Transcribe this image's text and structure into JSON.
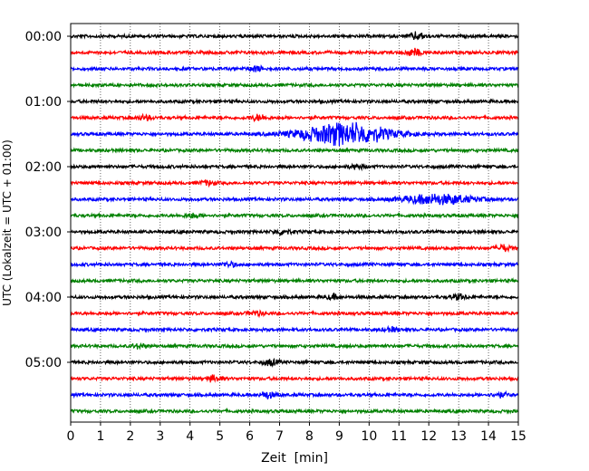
{
  "chart_data": {
    "type": "line",
    "title": "",
    "xlabel": "Zeit  [min]",
    "ylabel": "UTC (Lokalzeit = UTC + 01:00)",
    "xlim": [
      0,
      15
    ],
    "x_ticks": [
      0,
      1,
      2,
      3,
      4,
      5,
      6,
      7,
      8,
      9,
      10,
      11,
      12,
      13,
      14,
      15
    ],
    "x_tick_labels": [
      "0",
      "1",
      "2",
      "3",
      "4",
      "5",
      "6",
      "7",
      "8",
      "9",
      "10",
      "11",
      "12",
      "13",
      "14",
      "15"
    ],
    "y_tick_labels": [
      "00:00",
      "01:00",
      "02:00",
      "03:00",
      "04:00",
      "05:00"
    ],
    "y_tick_trace_index": [
      0,
      4,
      8,
      12,
      16,
      20
    ],
    "grid": "vertical dotted at each minute",
    "trace_minutes": 15,
    "trace_colors": [
      "#000000",
      "#ff0000",
      "#0000ff",
      "#008000"
    ],
    "traces": [
      {
        "start": "00:00",
        "color": "#000000",
        "bursts": [
          {
            "t": 11.6,
            "amp": 0.5
          }
        ]
      },
      {
        "start": "00:15",
        "color": "#ff0000",
        "bursts": [
          {
            "t": 11.5,
            "amp": 0.5
          }
        ]
      },
      {
        "start": "00:30",
        "color": "#0000ff",
        "bursts": [
          {
            "t": 6.2,
            "amp": 0.4
          }
        ]
      },
      {
        "start": "00:45",
        "color": "#008000",
        "bursts": []
      },
      {
        "start": "01:00",
        "color": "#000000",
        "bursts": []
      },
      {
        "start": "01:15",
        "color": "#ff0000",
        "bursts": [
          {
            "t": 2.5,
            "amp": 0.3
          },
          {
            "t": 6.3,
            "amp": 0.4
          }
        ]
      },
      {
        "start": "01:30",
        "color": "#0000ff",
        "bursts": [
          {
            "t": 9.2,
            "amp": 1.6,
            "width": 1.5
          }
        ]
      },
      {
        "start": "01:45",
        "color": "#008000",
        "bursts": []
      },
      {
        "start": "02:00",
        "color": "#000000",
        "bursts": [
          {
            "t": 9.6,
            "amp": 0.3
          }
        ]
      },
      {
        "start": "02:15",
        "color": "#ff0000",
        "bursts": [
          {
            "t": 4.6,
            "amp": 0.3
          }
        ]
      },
      {
        "start": "02:30",
        "color": "#0000ff",
        "bursts": [
          {
            "t": 12.3,
            "amp": 0.7,
            "width": 1.2
          }
        ]
      },
      {
        "start": "02:45",
        "color": "#008000",
        "bursts": [
          {
            "t": 4.1,
            "amp": 0.3
          }
        ]
      },
      {
        "start": "03:00",
        "color": "#000000",
        "bursts": [
          {
            "t": 7.1,
            "amp": 0.4
          }
        ]
      },
      {
        "start": "03:15",
        "color": "#ff0000",
        "bursts": [
          {
            "t": 14.5,
            "amp": 0.4
          }
        ]
      },
      {
        "start": "03:30",
        "color": "#0000ff",
        "bursts": [
          {
            "t": 5.3,
            "amp": 0.3
          }
        ]
      },
      {
        "start": "03:45",
        "color": "#008000",
        "bursts": []
      },
      {
        "start": "04:00",
        "color": "#000000",
        "bursts": [
          {
            "t": 13.0,
            "amp": 0.4
          },
          {
            "t": 8.8,
            "amp": 0.3
          }
        ]
      },
      {
        "start": "04:15",
        "color": "#ff0000",
        "bursts": [
          {
            "t": 6.2,
            "amp": 0.3
          }
        ]
      },
      {
        "start": "04:30",
        "color": "#0000ff",
        "bursts": [
          {
            "t": 10.8,
            "amp": 0.3
          }
        ]
      },
      {
        "start": "04:45",
        "color": "#008000",
        "bursts": [
          {
            "t": 2.3,
            "amp": 0.3
          }
        ]
      },
      {
        "start": "05:00",
        "color": "#000000",
        "bursts": [
          {
            "t": 6.7,
            "amp": 0.4
          }
        ]
      },
      {
        "start": "05:15",
        "color": "#ff0000",
        "bursts": [
          {
            "t": 4.8,
            "amp": 0.4
          }
        ]
      },
      {
        "start": "05:30",
        "color": "#0000ff",
        "bursts": [
          {
            "t": 6.6,
            "amp": 0.5
          },
          {
            "t": 14.4,
            "amp": 0.3
          }
        ]
      },
      {
        "start": "05:45",
        "color": "#008000",
        "bursts": []
      }
    ]
  }
}
